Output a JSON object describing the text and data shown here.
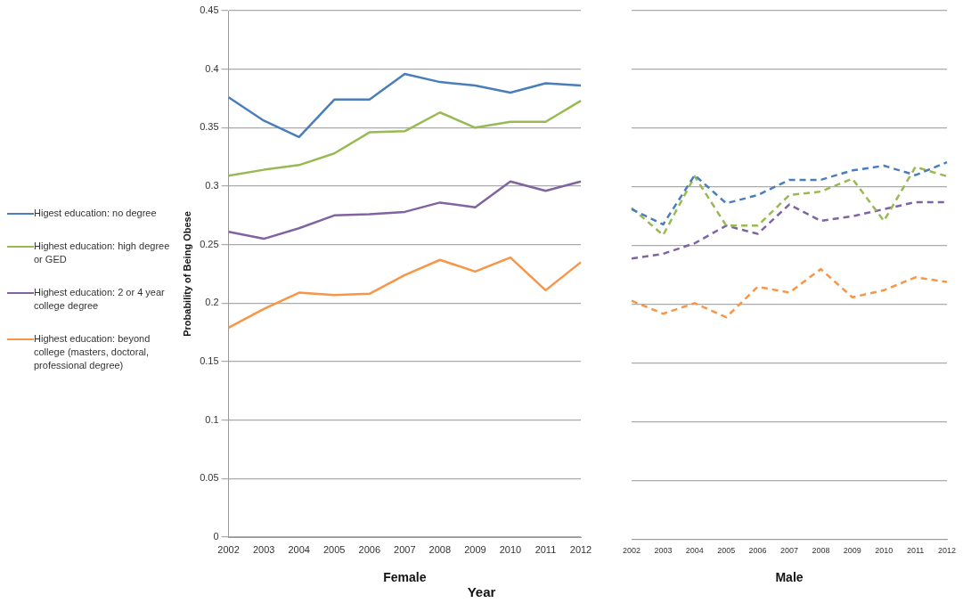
{
  "chart_data": [
    {
      "type": "line",
      "xlabel": "Female",
      "ylabel": "Probability of Being Obese",
      "categories": [
        "2002",
        "2003",
        "2004",
        "2005",
        "2006",
        "2007",
        "2008",
        "2009",
        "2010",
        "2011",
        "2012"
      ],
      "series": [
        {
          "name": "Higest education: no degree",
          "color": "#4a7ebb",
          "values": [
            0.376,
            0.356,
            0.342,
            0.374,
            0.374,
            0.396,
            0.389,
            0.386,
            0.38,
            0.388,
            0.386
          ]
        },
        {
          "name": "Highest education: high degree or GED",
          "color": "#98b954",
          "values": [
            0.309,
            0.314,
            0.318,
            0.328,
            0.346,
            0.347,
            0.363,
            0.35,
            0.355,
            0.355,
            0.373
          ]
        },
        {
          "name": "Highest education: 2 or 4 year college degree",
          "color": "#8064a2",
          "values": [
            0.261,
            0.255,
            0.264,
            0.275,
            0.276,
            0.278,
            0.286,
            0.282,
            0.304,
            0.296,
            0.304
          ]
        },
        {
          "name": "Highest education: beyond college (masters, doctoral, professional degree)",
          "color": "#f79646",
          "values": [
            0.179,
            0.195,
            0.209,
            0.207,
            0.208,
            0.224,
            0.237,
            0.227,
            0.239,
            0.211,
            0.235
          ]
        }
      ],
      "ylim": [
        0,
        0.45
      ],
      "yticks": [
        0,
        0.05,
        0.1,
        0.15,
        0.2,
        0.25,
        0.3,
        0.35,
        0.4,
        0.45
      ],
      "grid": "y",
      "legend": "left",
      "marker": "none",
      "line_style": "solid",
      "annotations": [
        "Year"
      ]
    },
    {
      "type": "line",
      "xlabel": "Male",
      "categories": [
        "2002",
        "2003",
        "2004",
        "2005",
        "2006",
        "2007",
        "2008",
        "2009",
        "2010",
        "2011",
        "2012"
      ],
      "series": [
        {
          "color": "#4a7ebb",
          "values": [
            0.281,
            0.268,
            0.31,
            0.286,
            0.293,
            0.306,
            0.306,
            0.314,
            0.318,
            0.31,
            0.321
          ]
        },
        {
          "color": "#98b954",
          "values": [
            0.282,
            0.259,
            0.309,
            0.267,
            0.267,
            0.293,
            0.296,
            0.307,
            0.271,
            0.317,
            0.309
          ]
        },
        {
          "color": "#8064a2",
          "values": [
            0.239,
            0.243,
            0.252,
            0.267,
            0.26,
            0.285,
            0.271,
            0.275,
            0.281,
            0.287,
            0.287
          ]
        },
        {
          "color": "#f79646",
          "values": [
            0.203,
            0.192,
            0.201,
            0.189,
            0.215,
            0.21,
            0.23,
            0.206,
            0.212,
            0.223,
            0.219
          ]
        }
      ],
      "ylim": [
        0,
        0.45
      ],
      "yticks": [
        0,
        0.05,
        0.1,
        0.15,
        0.2,
        0.25,
        0.3,
        0.35,
        0.4,
        0.45
      ],
      "grid": "y",
      "marker": "none",
      "line_style": "dashed",
      "tick_labels": "x"
    }
  ]
}
